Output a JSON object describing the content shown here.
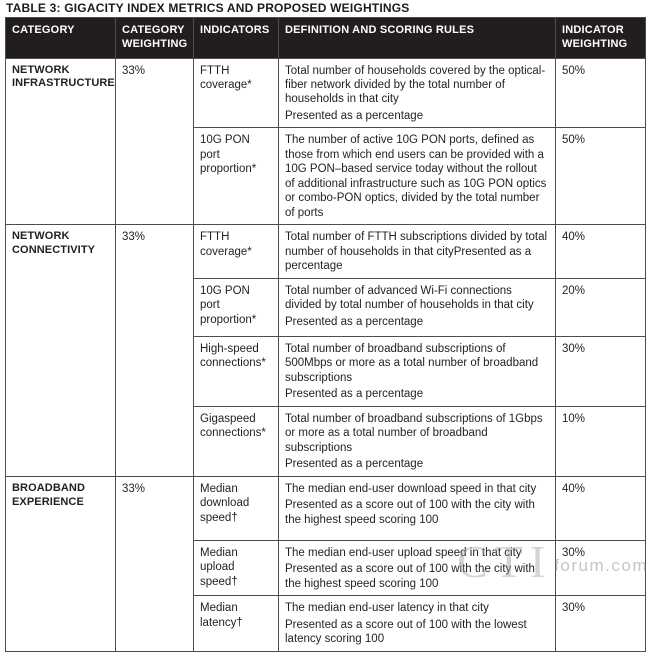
{
  "title": "TABLE 3: GIGACITY INDEX METRICS AND PROPOSED WEIGHTINGS",
  "table": {
    "headers": [
      "CATEGORY",
      "CATEGORY WEIGHTING",
      "INDICATORS",
      "DEFINITION AND SCORING RULES",
      "INDICATOR WEIGHTING"
    ],
    "categories": [
      {
        "name": "NETWORK INFRASTRUCTURE",
        "weighting": "33%",
        "rows": [
          {
            "indicator": "FTTH coverage*",
            "definition": [
              "Total number of households covered by the optical-fiber network divided by the total number of households in that city",
              "Presented as a percentage"
            ],
            "weighting": "50%"
          },
          {
            "indicator": "10G PON port proportion*",
            "definition": [
              "The number of active 10G PON ports, defined as those from which end users can be provided with a 10G PON–based service today without the rollout of additional infrastructure such as 10G PON optics or combo-PON optics, divided by the total number of ports"
            ],
            "weighting": "50%"
          }
        ]
      },
      {
        "name": "NETWORK CONNECTIVITY",
        "weighting": "33%",
        "rows": [
          {
            "indicator": "FTTH coverage*",
            "definition": [
              "Total number of FTTH subscriptions divided by total number of households in that cityPresented as a percentage"
            ],
            "weighting": "40%"
          },
          {
            "indicator": "10G PON port proportion*",
            "definition": [
              "Total number of advanced Wi-Fi connections divided by total number of households in that city",
              "Presented as a percentage"
            ],
            "weighting": "20%"
          },
          {
            "indicator": "High-speed connections*",
            "definition": [
              "Total number of broadband subscriptions of 500Mbps or more as a total number of broadband subscriptions",
              "Presented as a percentage"
            ],
            "weighting": "30%"
          },
          {
            "indicator": "Gigaspeed connections*",
            "definition": [
              "Total number of broadband subscriptions of 1Gbps or more as a total number of broadband subscriptions",
              "Presented as a percentage"
            ],
            "weighting": "10%"
          }
        ]
      },
      {
        "name": "BROADBAND EXPERIENCE",
        "weighting": "33%",
        "rows": [
          {
            "indicator": "Median download speed†",
            "definition": [
              "The median end-user download speed in that city",
              "Presented as a score out of 100 with the city with the highest speed scoring 100"
            ],
            "weighting": "40%"
          },
          {
            "indicator": "Median upload speed†",
            "definition": [
              "The median end-user upload speed in that city",
              "Presented as a score out of 100 with the city with the highest speed scoring 100"
            ],
            "weighting": "30%"
          },
          {
            "indicator": "Median latency†",
            "definition": [
              "The median end-user latency in that city",
              "Presented as a score out of 100 with the lowest latency scoring 100"
            ],
            "weighting": "30%"
          }
        ]
      }
    ]
  },
  "watermark": {
    "big": "CTI",
    "small": "forum.com"
  },
  "colors": {
    "header_bg": "#221e1f",
    "header_text": "#ffffff",
    "border": "#4d4d4d",
    "body_text": "#231f20",
    "watermark": "#bdbdbd"
  }
}
